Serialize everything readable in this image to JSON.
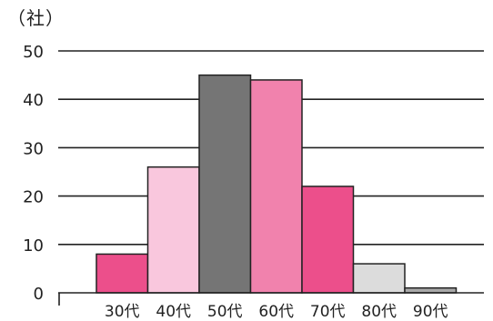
{
  "chart_data": {
    "type": "bar",
    "unit_label": "（社）",
    "title": "",
    "xlabel": "",
    "ylabel": "",
    "categories": [
      "30代",
      "40代",
      "50代",
      "60代",
      "70代",
      "80代",
      "90代"
    ],
    "values": [
      8,
      26,
      45,
      44,
      22,
      6,
      1
    ],
    "colors": [
      "#ec4f8b",
      "#f9c7dd",
      "#757575",
      "#f182ad",
      "#ec4f8b",
      "#dcdcdc",
      "#a8a8a8"
    ],
    "yticks": [
      0,
      10,
      20,
      30,
      40,
      50
    ],
    "ylim": [
      0,
      50
    ],
    "grid": true,
    "legend": "none"
  }
}
